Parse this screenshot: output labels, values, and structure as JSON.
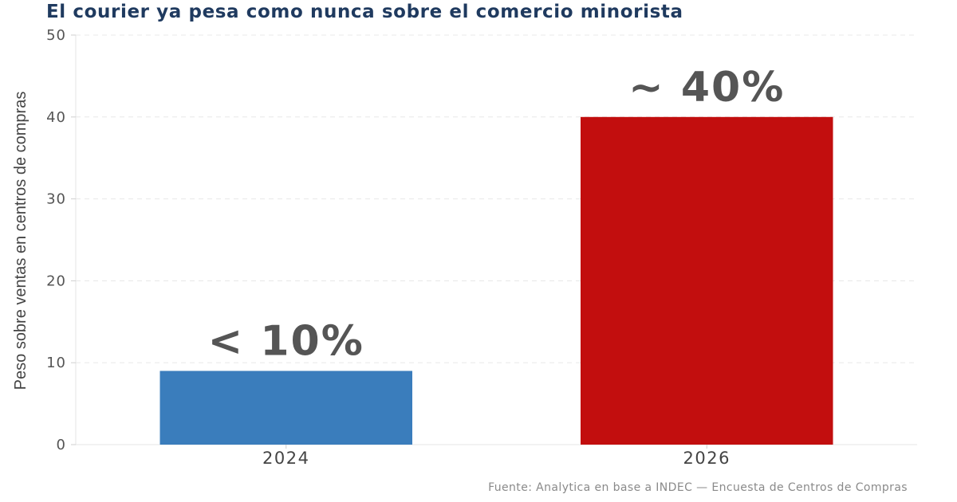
{
  "chart_data": {
    "type": "bar",
    "title": "El courier ya pesa como nunca sobre el comercio minorista",
    "xlabel": "",
    "ylabel": "Peso sobre ventas en centros de compras",
    "categories": [
      "2024",
      "2026"
    ],
    "values": [
      9,
      40
    ],
    "data_labels": [
      "< 10%",
      "~ 40%"
    ],
    "colors": [
      "#3a7dbc",
      "#c20e0e"
    ],
    "ylim": [
      0,
      50
    ],
    "yticks": [
      "0",
      "10",
      "20",
      "30",
      "40",
      "50"
    ],
    "grid": true,
    "legend": "none",
    "source": "Fuente: Analytica en base a INDEC — Encuesta de Centros de Compras"
  }
}
